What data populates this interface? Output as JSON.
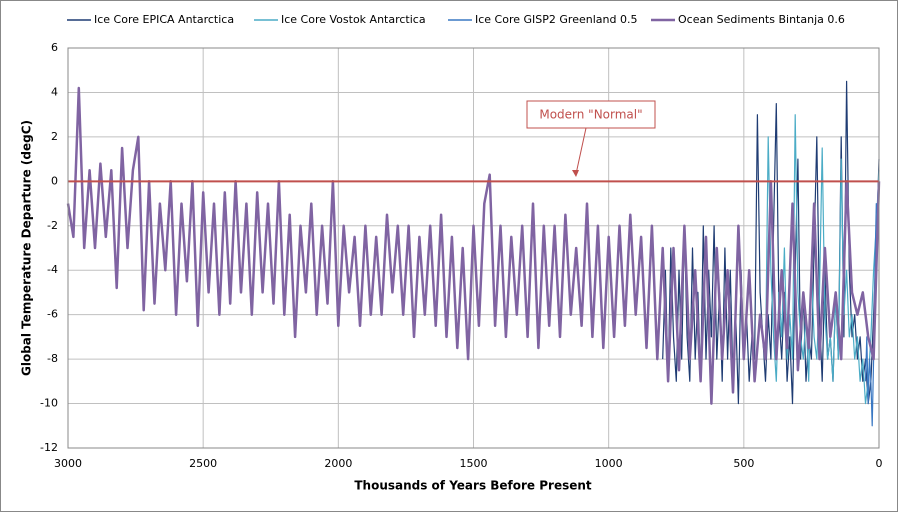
{
  "chart_data": {
    "type": "line",
    "x_label": "Thousands of Years Before Present",
    "y_label": "Global Temperature Departure (degC)",
    "xlim": [
      3000,
      0
    ],
    "xticks": [
      3000,
      2500,
      2000,
      1500,
      1000,
      500,
      0
    ],
    "ylim": [
      -12,
      6
    ],
    "yticks": [
      -12,
      -10,
      -8,
      -6,
      -4,
      -2,
      0,
      2,
      4,
      6
    ],
    "grid": true,
    "legend": "top",
    "reference_line": {
      "value": 0,
      "label": "Modern \"Normal\"",
      "color": "#c0504d"
    },
    "series": [
      {
        "name": "Ice Core EPICA  Antarctica",
        "color": "#1f3c73",
        "x": [
          800,
          790,
          780,
          770,
          760,
          750,
          740,
          730,
          720,
          710,
          700,
          690,
          680,
          670,
          660,
          650,
          640,
          630,
          620,
          610,
          600,
          590,
          580,
          570,
          560,
          550,
          540,
          530,
          520,
          510,
          500,
          490,
          480,
          470,
          460,
          450,
          440,
          430,
          420,
          410,
          400,
          390,
          380,
          370,
          360,
          350,
          340,
          330,
          320,
          310,
          300,
          290,
          280,
          270,
          260,
          250,
          240,
          230,
          220,
          210,
          200,
          190,
          180,
          170,
          160,
          150,
          140,
          130,
          120,
          110,
          100,
          90,
          80,
          70,
          60,
          50,
          40,
          30,
          20,
          10,
          0
        ],
        "values": [
          -8,
          -4,
          -9,
          -3,
          -7,
          -9,
          -4,
          -8,
          -2,
          -7,
          -9,
          -3,
          -8,
          -5,
          -9,
          -2,
          -8,
          -4,
          -7,
          -2,
          -8,
          -5,
          -9,
          -3,
          -8,
          -4,
          -9,
          -6,
          -10,
          -4,
          -8,
          -6,
          -9,
          -7,
          -8,
          3,
          -5,
          -7,
          -9,
          -6,
          -8,
          -2,
          3.5,
          -6,
          -8,
          -5,
          -9,
          -7,
          -10,
          -4,
          1,
          -8,
          -5,
          -9,
          -7,
          -8,
          -3,
          2,
          -6,
          -9,
          -4,
          -8,
          -7,
          -9,
          -5,
          -8,
          2,
          -7,
          4.5,
          -4,
          -7,
          -6,
          -8,
          -7,
          -9,
          -8,
          -10,
          -9,
          -6,
          -3,
          1
        ]
      },
      {
        "name": "Ice Core Vostok  Antarctica",
        "color": "#4bacc6",
        "x": [
          420,
          410,
          400,
          390,
          380,
          370,
          360,
          350,
          340,
          330,
          320,
          310,
          300,
          290,
          280,
          270,
          260,
          250,
          240,
          230,
          220,
          210,
          200,
          190,
          180,
          170,
          160,
          150,
          140,
          130,
          120,
          110,
          100,
          90,
          80,
          70,
          60,
          50,
          40,
          30,
          20,
          10,
          0
        ],
        "values": [
          -8,
          2,
          -4,
          -7,
          -9,
          -5,
          -7,
          -3,
          -8,
          -6,
          -8,
          3,
          -5,
          -7,
          -8,
          -6,
          -9,
          -4,
          -7,
          -8,
          -5,
          1.5,
          -6,
          -8,
          -7,
          -9,
          -5,
          -8,
          1,
          -6,
          -4,
          -7,
          -6,
          -8,
          -7,
          -9,
          -8,
          -10,
          -9,
          -7,
          -4,
          -2,
          0.5
        ]
      },
      {
        "name": "Ice Core GISP2  Greenland 0.5",
        "color": "#3a78c3",
        "x": [
          50,
          45,
          40,
          35,
          30,
          25,
          20,
          15,
          10,
          5,
          0
        ],
        "values": [
          -9,
          -7,
          -10,
          -8,
          -9,
          -11,
          -8,
          -4,
          -1,
          -1.5,
          -0.5
        ]
      },
      {
        "name": "Ocean Sediments Bintanja  0.6",
        "color": "#8064a2",
        "width": 2.5,
        "x": [
          3000,
          2980,
          2960,
          2940,
          2920,
          2900,
          2880,
          2860,
          2840,
          2820,
          2800,
          2780,
          2760,
          2740,
          2720,
          2700,
          2680,
          2660,
          2640,
          2620,
          2600,
          2580,
          2560,
          2540,
          2520,
          2500,
          2480,
          2460,
          2440,
          2420,
          2400,
          2380,
          2360,
          2340,
          2320,
          2300,
          2280,
          2260,
          2240,
          2220,
          2200,
          2180,
          2160,
          2140,
          2120,
          2100,
          2080,
          2060,
          2040,
          2020,
          2000,
          1980,
          1960,
          1940,
          1920,
          1900,
          1880,
          1860,
          1840,
          1820,
          1800,
          1780,
          1760,
          1740,
          1720,
          1700,
          1680,
          1660,
          1640,
          1620,
          1600,
          1580,
          1560,
          1540,
          1520,
          1500,
          1480,
          1460,
          1440,
          1420,
          1400,
          1380,
          1360,
          1340,
          1320,
          1300,
          1280,
          1260,
          1240,
          1220,
          1200,
          1180,
          1160,
          1140,
          1120,
          1100,
          1080,
          1060,
          1040,
          1020,
          1000,
          980,
          960,
          940,
          920,
          900,
          880,
          860,
          840,
          820,
          800,
          780,
          760,
          740,
          720,
          700,
          680,
          660,
          640,
          620,
          600,
          580,
          560,
          540,
          520,
          500,
          480,
          460,
          440,
          420,
          400,
          380,
          360,
          340,
          320,
          300,
          280,
          260,
          240,
          220,
          200,
          180,
          160,
          140,
          120,
          100,
          80,
          60,
          40,
          20,
          0
        ],
        "values": [
          -1,
          -2.5,
          4.2,
          -3,
          0.5,
          -3,
          0.8,
          -2.5,
          0.5,
          -4.8,
          1.5,
          -3,
          0.5,
          2,
          -5.8,
          0,
          -5.5,
          -1,
          -4,
          0,
          -6,
          -1,
          -4.5,
          0,
          -6.5,
          -0.5,
          -5,
          -1,
          -6,
          -0.5,
          -5.5,
          0,
          -5,
          -1,
          -6,
          -0.5,
          -5,
          -1,
          -5.5,
          0,
          -6,
          -1.5,
          -7,
          -2,
          -5,
          -1,
          -6,
          -2,
          -5.5,
          0,
          -6.5,
          -2,
          -5,
          -2.5,
          -6.5,
          -2,
          -6,
          -2.5,
          -6,
          -1.5,
          -5,
          -2,
          -6,
          -2,
          -7,
          -2.5,
          -6,
          -2,
          -6.5,
          -1.5,
          -7,
          -2.5,
          -7.5,
          -3,
          -8,
          -2,
          -6.5,
          -1,
          0.3,
          -6.5,
          -2,
          -7,
          -2.5,
          -6,
          -2,
          -7,
          -1,
          -7.5,
          -2,
          -6.5,
          -2,
          -7,
          -1.5,
          -6,
          -3,
          -6.5,
          -1,
          -7,
          -2,
          -7.5,
          -2.5,
          -7,
          -2,
          -6.5,
          -1.5,
          -6,
          -2.5,
          -7.5,
          -2,
          -8,
          -3,
          -9,
          -3,
          -8.5,
          -2,
          -8,
          -4,
          -9,
          -2.5,
          -10,
          -3,
          -8,
          -4,
          -9.5,
          -2,
          -8,
          -4,
          -9,
          -6,
          -8,
          0,
          -8,
          -4,
          -7.5,
          -1,
          -8.5,
          -5,
          -7.5,
          -1,
          -8,
          -3,
          -7,
          -5,
          -8,
          0,
          -5,
          -6,
          -5,
          -7,
          -8,
          0
        ]
      }
    ]
  }
}
